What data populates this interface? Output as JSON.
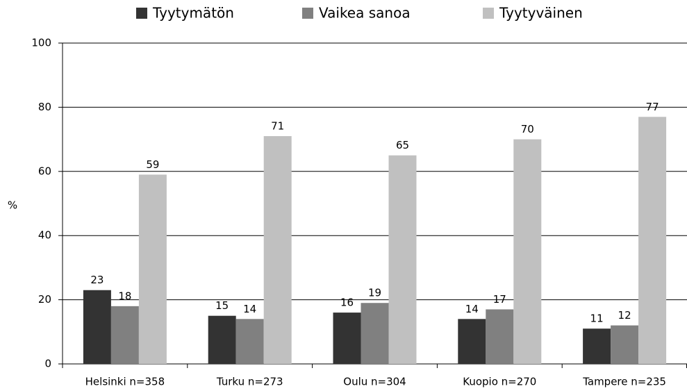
{
  "chart_data": {
    "type": "bar",
    "categories": [
      "Helsinki n=358",
      "Turku n=273",
      "Oulu n=304",
      "Kuopio n=270",
      "Tampere n=235"
    ],
    "series": [
      {
        "name": "Tyytymätön",
        "color": "#333333",
        "values": [
          23,
          15,
          16,
          14,
          11
        ]
      },
      {
        "name": "Vaikea sanoa",
        "color": "#808080",
        "values": [
          18,
          14,
          19,
          17,
          12
        ]
      },
      {
        "name": "Tyytyväinen",
        "color": "#c0c0c0",
        "values": [
          59,
          71,
          65,
          70,
          77
        ]
      }
    ],
    "y_label": "%",
    "ylim": [
      0,
      100
    ],
    "yticks": [
      0,
      20,
      40,
      60,
      80,
      100
    ],
    "grid": true,
    "legend": "top"
  }
}
